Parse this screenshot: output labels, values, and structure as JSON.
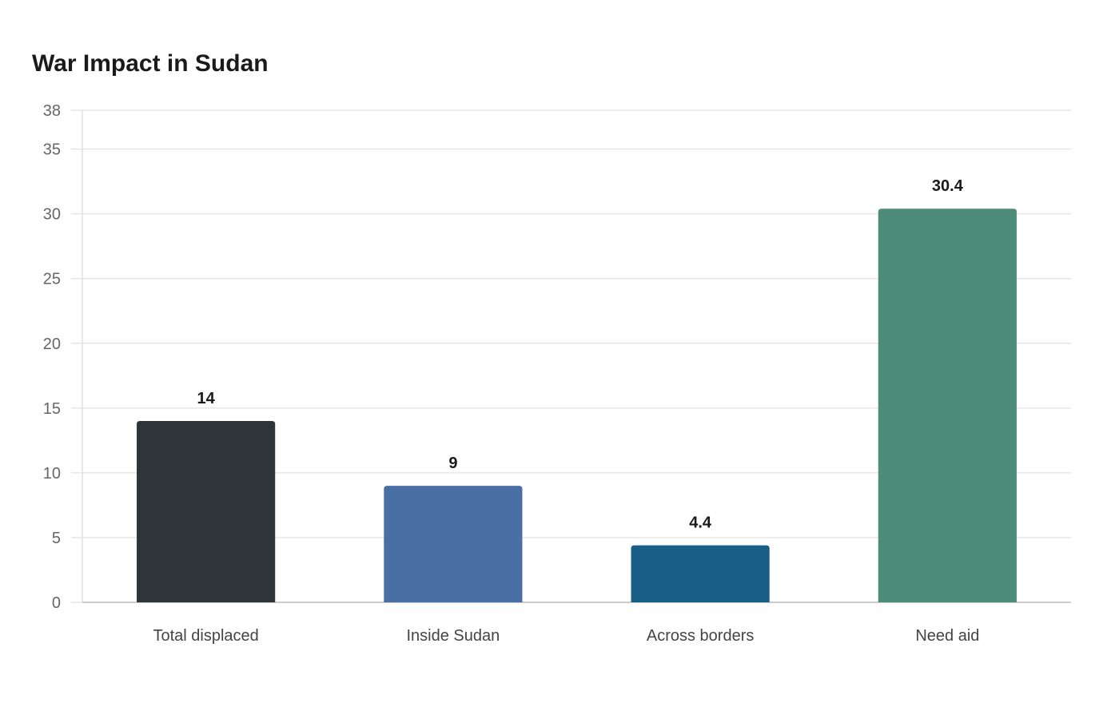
{
  "chart_data": {
    "type": "bar",
    "title": "War Impact in Sudan",
    "xlabel": "",
    "ylabel": "",
    "categories": [
      "Total displaced",
      "Inside Sudan",
      "Across borders",
      "Need aid"
    ],
    "values": [
      14,
      9,
      4.4,
      30.4
    ],
    "value_labels": [
      "14",
      "9",
      "4.4",
      "30.4"
    ],
    "colors": [
      "#2e3538",
      "#4a6fa5",
      "#185f86",
      "#4e8c7a"
    ],
    "ylim": [
      0,
      38
    ],
    "yticks": [
      0,
      5,
      10,
      15,
      20,
      25,
      30,
      35,
      38
    ],
    "grid": true,
    "legend": "none"
  }
}
